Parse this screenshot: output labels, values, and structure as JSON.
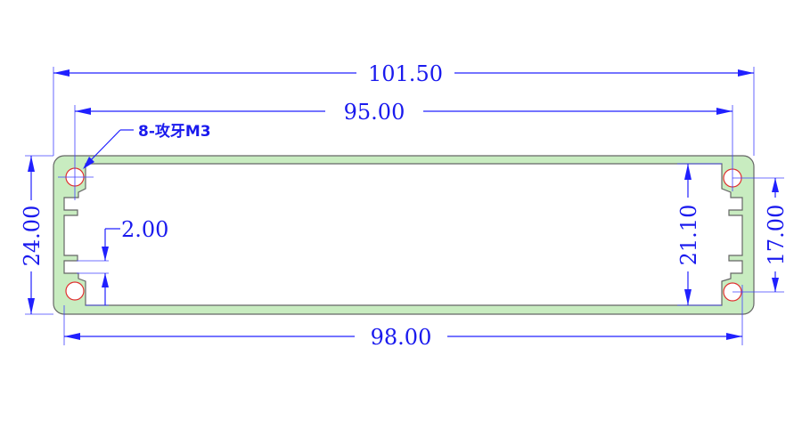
{
  "dimensions": {
    "overall_width": "101.50",
    "hole_spacing_horizontal": "95.00",
    "thread_note": "8-攻牙M3",
    "overall_height": "24.00",
    "wall_thickness": "2.00",
    "inner_height": "21.10",
    "hole_spacing_vertical": "17.00",
    "inner_width": "98.00"
  },
  "colors": {
    "profile_fill": "#c8ecc0",
    "dimension_line": "#2020ff",
    "hole_outline": "#e03030"
  }
}
